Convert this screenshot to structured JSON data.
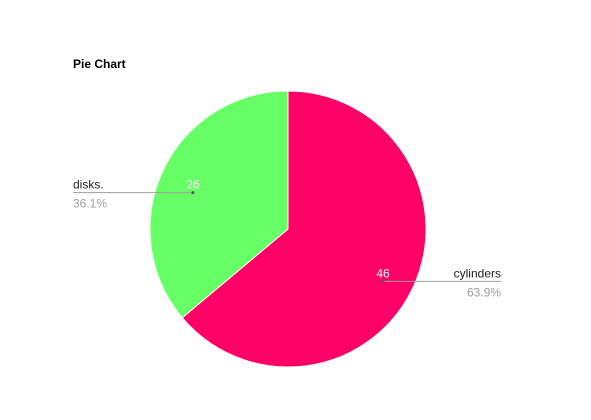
{
  "chart_data": {
    "type": "pie",
    "title": "Pie Chart",
    "slices": [
      {
        "label": "cylinders",
        "value": 46,
        "percent_label": "63.9%",
        "color": "#ff0066"
      },
      {
        "label": "disks.",
        "value": 26,
        "percent_label": "36.1%",
        "color": "#66ff66"
      }
    ],
    "start_angle_deg": 0,
    "direction": "clockwise",
    "legend": "external-labels"
  }
}
